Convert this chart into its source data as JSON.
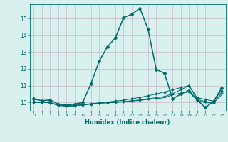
{
  "xlabel": "Humidex (Indice chaleur)",
  "bg_color": "#d8f0ee",
  "grid_color_v": "#c8b8c8",
  "grid_color_h": "#c8b8c8",
  "line_color": "#006868",
  "tick_color": "#006868",
  "xlim": [
    -0.5,
    23.5
  ],
  "ylim": [
    9.5,
    15.85
  ],
  "xtick_labels": [
    "0",
    "1",
    "2",
    "3",
    "4",
    "5",
    "6",
    "7",
    "8",
    "9",
    "10",
    "11",
    "12",
    "13",
    "14",
    "15",
    "16",
    "17",
    "18",
    "19",
    "20",
    "21",
    "22",
    "23"
  ],
  "ytick_labels": [
    "10",
    "11",
    "12",
    "13",
    "14",
    "15"
  ],
  "ytick_vals": [
    10,
    11,
    12,
    13,
    14,
    15
  ],
  "lines": [
    {
      "x": [
        0,
        1,
        2,
        3,
        4,
        5,
        6,
        7,
        8,
        9,
        10,
        11,
        12,
        13,
        14,
        15,
        16,
        17,
        18,
        19,
        20,
        21,
        22,
        23
      ],
      "y": [
        10.2,
        10.1,
        10.15,
        9.9,
        9.85,
        9.9,
        10.0,
        11.1,
        12.45,
        13.3,
        13.85,
        15.05,
        15.25,
        15.6,
        14.35,
        11.95,
        11.75,
        10.2,
        10.5,
        10.7,
        10.15,
        9.7,
        10.05,
        10.85
      ],
      "marker": "D",
      "markersize": 2.5,
      "linewidth": 1.1,
      "zorder": 5
    },
    {
      "x": [
        0,
        1,
        2,
        3,
        4,
        5,
        6,
        7,
        8,
        9,
        10,
        11,
        12,
        13,
        14,
        15,
        16,
        17,
        18,
        19,
        20,
        21,
        22,
        23
      ],
      "y": [
        10.05,
        10.0,
        10.0,
        9.85,
        9.8,
        9.82,
        9.88,
        9.92,
        9.97,
        10.02,
        10.08,
        10.13,
        10.22,
        10.3,
        10.4,
        10.5,
        10.62,
        10.75,
        10.88,
        11.0,
        10.28,
        10.18,
        10.08,
        10.7
      ],
      "marker": "D",
      "markersize": 1.8,
      "linewidth": 0.7,
      "zorder": 4
    },
    {
      "x": [
        0,
        1,
        2,
        3,
        4,
        5,
        6,
        7,
        8,
        9,
        10,
        11,
        12,
        13,
        14,
        15,
        16,
        17,
        18,
        19,
        20,
        21,
        22,
        23
      ],
      "y": [
        10.0,
        10.0,
        9.98,
        9.82,
        9.78,
        9.8,
        9.85,
        9.9,
        9.95,
        9.98,
        10.02,
        10.05,
        10.1,
        10.15,
        10.22,
        10.28,
        10.35,
        10.52,
        10.75,
        11.0,
        10.18,
        10.05,
        9.98,
        10.55
      ],
      "marker": "D",
      "markersize": 1.8,
      "linewidth": 0.7,
      "zorder": 3
    },
    {
      "x": [
        0,
        1,
        2,
        3,
        4,
        5,
        6,
        7,
        8,
        9,
        10,
        11,
        12,
        13,
        14,
        15,
        16,
        17,
        18,
        19,
        20,
        21,
        22,
        23
      ],
      "y": [
        10.0,
        10.0,
        9.98,
        9.82,
        9.78,
        9.8,
        9.85,
        9.9,
        9.95,
        9.98,
        10.0,
        10.02,
        10.08,
        10.12,
        10.18,
        10.22,
        10.28,
        10.45,
        10.55,
        10.62,
        10.12,
        9.98,
        9.97,
        10.45
      ],
      "marker": null,
      "markersize": 0,
      "linewidth": 0.7,
      "zorder": 2
    }
  ]
}
